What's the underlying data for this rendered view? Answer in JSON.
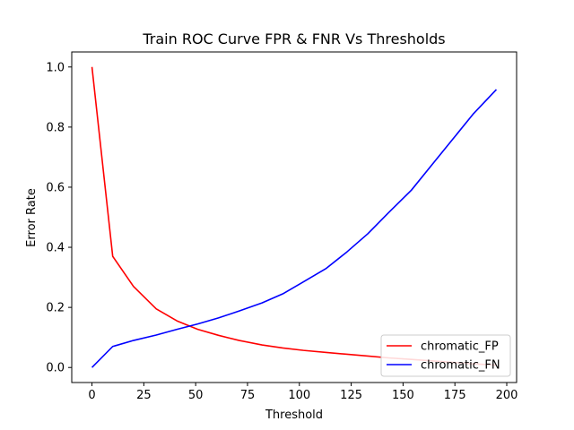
{
  "chart_data": {
    "type": "line",
    "title": "Train ROC Curve FPR & FNR Vs Thresholds",
    "xlabel": "Threshold",
    "ylabel": "Error Rate",
    "xlim": [
      -9.75,
      204.75
    ],
    "ylim": [
      -0.05,
      1.05
    ],
    "xticks": [
      0,
      25,
      50,
      75,
      100,
      125,
      150,
      175,
      200
    ],
    "yticks": [
      0.0,
      0.2,
      0.4,
      0.6,
      0.8,
      1.0
    ],
    "xtick_labels": [
      "0",
      "25",
      "50",
      "75",
      "100",
      "125",
      "150",
      "175",
      "200"
    ],
    "ytick_labels": [
      "0.0",
      "0.2",
      "0.4",
      "0.6",
      "0.8",
      "1.0"
    ],
    "grid": false,
    "legend_position": "lower-right",
    "series": [
      {
        "name": "chromatic_FP",
        "color": "#ff0000",
        "x": [
          0,
          10,
          20,
          31,
          41,
          51,
          61,
          71,
          82,
          92,
          102,
          113,
          123,
          133,
          143,
          154,
          164,
          174,
          184,
          195
        ],
        "y": [
          1.0,
          0.37,
          0.27,
          0.195,
          0.155,
          0.127,
          0.107,
          0.09,
          0.075,
          0.065,
          0.057,
          0.05,
          0.044,
          0.038,
          0.032,
          0.027,
          0.022,
          0.017,
          0.012,
          0.008
        ]
      },
      {
        "name": "chromatic_FN",
        "color": "#0000ff",
        "x": [
          0,
          10,
          20,
          31,
          41,
          51,
          61,
          71,
          82,
          92,
          102,
          113,
          123,
          133,
          143,
          154,
          164,
          174,
          184,
          195
        ],
        "y": [
          0.0,
          0.07,
          0.09,
          0.108,
          0.127,
          0.145,
          0.165,
          0.188,
          0.215,
          0.245,
          0.285,
          0.33,
          0.385,
          0.445,
          0.515,
          0.59,
          0.675,
          0.76,
          0.845,
          0.925
        ]
      }
    ]
  }
}
